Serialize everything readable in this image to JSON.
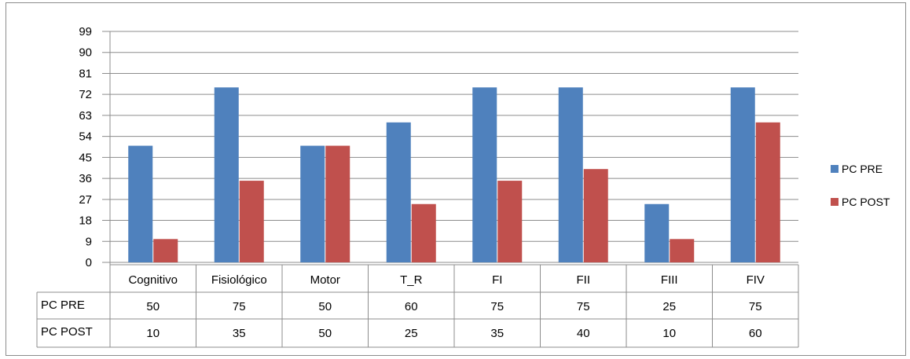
{
  "chart_data": {
    "type": "bar",
    "categories": [
      "Cognitivo",
      "Fisiológico",
      "Motor",
      "T_R",
      "FI",
      "FII",
      "FIII",
      "FIV"
    ],
    "series": [
      {
        "name": "PC PRE",
        "values": [
          50,
          75,
          50,
          60,
          75,
          75,
          25,
          75
        ],
        "color": "#4f81bd"
      },
      {
        "name": "PC POST",
        "values": [
          10,
          35,
          50,
          25,
          35,
          40,
          10,
          60
        ],
        "color": "#c0504d"
      }
    ],
    "y_ticks": [
      "0",
      "9",
      "18",
      "27",
      "36",
      "45",
      "54",
      "63",
      "72",
      "81",
      "90",
      "99"
    ],
    "ylim": [
      0,
      99
    ],
    "grid": true,
    "legend_position": "right",
    "data_table": true
  }
}
